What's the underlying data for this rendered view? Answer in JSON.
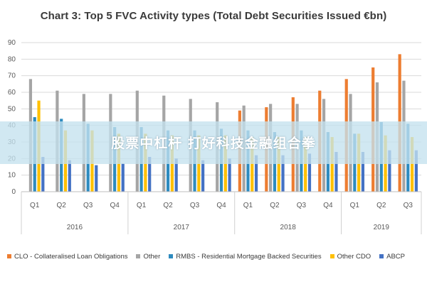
{
  "title": "Chart 3: Top 5 FVC Activity types (Total Debt Securities Issued €bn)",
  "banner": {
    "text": "股票中杠杆 打好科技金融组合拳"
  },
  "chart_data": {
    "type": "bar",
    "title": "Chart 3: Top 5 FVC Activity types (Total Debt Securities Issued €bn)",
    "xlabel": "",
    "ylabel": "",
    "ylim": [
      0,
      90
    ],
    "y_ticks": [
      0,
      10,
      20,
      30,
      40,
      50,
      60,
      70,
      80,
      90
    ],
    "grid": true,
    "legend_position": "bottom",
    "categories": [
      "Q1",
      "Q2",
      "Q3",
      "Q4",
      "Q1",
      "Q2",
      "Q3",
      "Q4",
      "Q1",
      "Q2",
      "Q3",
      "Q4",
      "Q1",
      "Q2",
      "Q3"
    ],
    "year_groups": [
      {
        "label": "2016",
        "count": 4
      },
      {
        "label": "2017",
        "count": 4
      },
      {
        "label": "2018",
        "count": 4
      },
      {
        "label": "2019",
        "count": 3
      }
    ],
    "series": [
      {
        "name": "CLO - Collateralised Loan Obligations",
        "color": "#ed7d31",
        "values": [
          0,
          0,
          0,
          0,
          0,
          0,
          0,
          0,
          49,
          51,
          57,
          61,
          68,
          75,
          83
        ]
      },
      {
        "name": "Other",
        "color": "#a5a5a5",
        "values": [
          68,
          61,
          59,
          59,
          61,
          58,
          56,
          54,
          52,
          53,
          53,
          56,
          59,
          66,
          67
        ]
      },
      {
        "name": "RMBS - Residential Mortgage Backed Securities",
        "color": "#2e8bbf",
        "values": [
          45,
          44,
          41,
          39,
          39,
          37,
          37,
          38,
          37,
          36,
          37,
          36,
          35,
          42,
          41
        ]
      },
      {
        "name": "Other CDO",
        "color": "#ffc000",
        "values": [
          55,
          37,
          37,
          35,
          35,
          34,
          34,
          34,
          33,
          33,
          33,
          33,
          35,
          34,
          33
        ]
      },
      {
        "name": "ABCP",
        "color": "#4472c4",
        "values": [
          21,
          19,
          16,
          17,
          21,
          20,
          19,
          20,
          22,
          22,
          23,
          24,
          24,
          25,
          25
        ]
      }
    ]
  }
}
